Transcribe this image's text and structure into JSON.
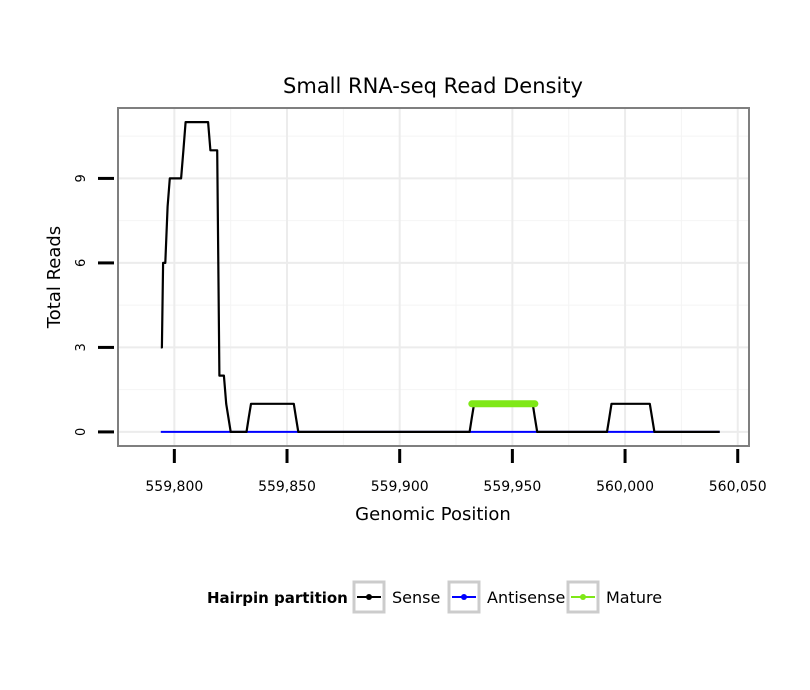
{
  "chart_data": {
    "type": "line",
    "title": "Small RNA-seq Read Density",
    "xlabel": "Genomic Position",
    "ylabel": "Total Reads",
    "xlim": [
      559775,
      560055
    ],
    "ylim": [
      -0.5,
      11.5
    ],
    "x_ticks": [
      559800,
      559850,
      559900,
      559950,
      560000,
      560050
    ],
    "x_tick_labels": [
      "559,800",
      "559,850",
      "559,900",
      "559,950",
      "560,000",
      "560,050"
    ],
    "y_ticks": [
      0,
      3,
      6,
      9
    ],
    "y_tick_labels": [
      "0",
      "3",
      "6",
      "9"
    ],
    "grid": true,
    "legend": {
      "title": "Hairpin partition",
      "position": "bottom",
      "entries": [
        "Sense",
        "Antisense",
        "Mature"
      ]
    },
    "series": [
      {
        "name": "Sense",
        "color": "#000000",
        "x": [
          559794,
          559794.5,
          559795,
          559796,
          559797,
          559798,
          559799,
          559800,
          559802,
          559803,
          559804,
          559805,
          559806,
          559814,
          559815,
          559816,
          559817,
          559818,
          559819,
          559820,
          559821,
          559822,
          559823,
          559825,
          559832,
          559833,
          559834,
          559853,
          559854,
          559855,
          559931,
          559932,
          559933,
          559959,
          559960,
          559961,
          559992,
          559993,
          559994,
          560011,
          560012,
          560013,
          560042
        ],
        "y": [
          3,
          3,
          6,
          6,
          8,
          9,
          9,
          9,
          9,
          9,
          10,
          11,
          11,
          11,
          11,
          10,
          10,
          10,
          10,
          2,
          2,
          2,
          1,
          0,
          0,
          0.5,
          1,
          1,
          0.5,
          0,
          0,
          0.5,
          1,
          1,
          0.5,
          0,
          0,
          0.5,
          1,
          1,
          0.5,
          0,
          0
        ]
      },
      {
        "name": "Antisense",
        "color": "#0000FF",
        "x": [
          559794,
          560042
        ],
        "y": [
          0,
          0
        ]
      },
      {
        "name": "Mature",
        "color": "#7FE817",
        "x": [
          559932,
          559960
        ],
        "y": [
          1,
          1
        ]
      }
    ]
  }
}
